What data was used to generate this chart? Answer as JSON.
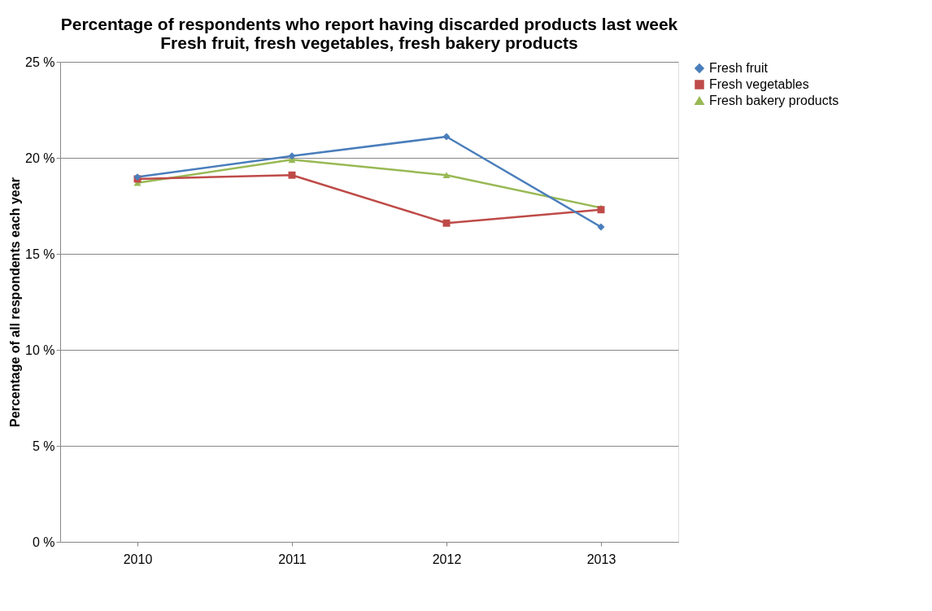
{
  "chart_data": {
    "type": "line",
    "title": "Percentage of respondents who report having discarded products last week",
    "subtitle": "Fresh fruit, fresh vegetables, fresh bakery products",
    "ylabel": "Percentage of all respondents each year",
    "categories": [
      "2010",
      "2011",
      "2012",
      "2013"
    ],
    "series": [
      {
        "name": "Fresh fruit",
        "color": "#4a7ebb",
        "marker": "diamond",
        "values": [
          19.0,
          20.1,
          21.1,
          16.4
        ]
      },
      {
        "name": "Fresh vegetables",
        "color": "#be4b48",
        "marker": "square",
        "values": [
          18.9,
          19.1,
          16.6,
          17.3
        ]
      },
      {
        "name": "Fresh bakery products",
        "color": "#98b954",
        "marker": "triangle",
        "values": [
          18.7,
          19.9,
          19.1,
          17.4
        ]
      }
    ],
    "ylim": [
      0,
      25
    ],
    "yticks": [
      {
        "value": 0,
        "label": "0 %"
      },
      {
        "value": 5,
        "label": "5 %"
      },
      {
        "value": 10,
        "label": "10 %"
      },
      {
        "value": 15,
        "label": "15 %"
      },
      {
        "value": 20,
        "label": "20 %"
      },
      {
        "value": 25,
        "label": "25 %"
      }
    ],
    "grid": "y",
    "legend": "right",
    "line_style": "solid"
  }
}
